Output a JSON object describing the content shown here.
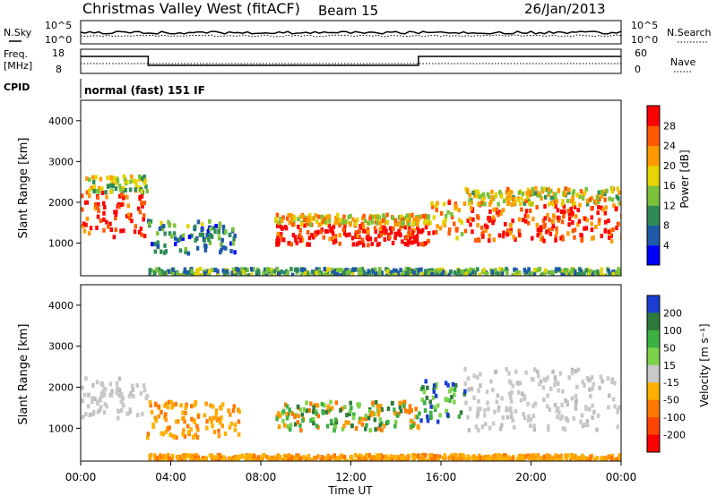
{
  "header": {
    "title": "Christmas Valley West (fitACF)",
    "beam": "Beam 15",
    "date": "26/Jan/2013"
  },
  "top_panels": {
    "nsky_label": "N.Sky",
    "nsearch_label": "N.Search",
    "noise_ticks_left": [
      "10^5",
      "10^0"
    ],
    "noise_ticks_right": [
      "10^5",
      "10^0"
    ],
    "freq_label_1": "Freq.",
    "freq_label_2": "[MHz]",
    "freq_ticks": [
      "18",
      "8"
    ],
    "nave_label": "Nave",
    "nave_ticks": [
      "60",
      "0"
    ],
    "cpid_label": "CPID",
    "cpid_text": "normal (fast) 151 IF"
  },
  "chart_data": [
    {
      "type": "heatmap",
      "panel": "power",
      "ylabel": "Slant Range [km]",
      "xlabel": "",
      "ylim": [
        200,
        4500
      ],
      "yticks": [
        "4000",
        "3000",
        "2000",
        "1000"
      ],
      "colorbar": {
        "label": "Power [dB]",
        "ticks": [
          "28",
          "24",
          "20",
          "16",
          "12",
          "8",
          "4"
        ],
        "colors": [
          "#0000ff",
          "#1f5aa8",
          "#2e8b57",
          "#7ac23a",
          "#e6d200",
          "#ff9900",
          "#ff5a00",
          "#ff0000"
        ]
      },
      "regions": [
        {
          "t0": 0.0,
          "t1": 2.9,
          "r0": 1200,
          "r1": 2300,
          "level": 0.9
        },
        {
          "t0": 0.2,
          "t1": 2.9,
          "r0": 2300,
          "r1": 2700,
          "level": 0.5
        },
        {
          "t0": 2.9,
          "t1": 6.8,
          "r0": 800,
          "r1": 1600,
          "level": 0.3
        },
        {
          "t0": 8.6,
          "t1": 15.5,
          "r0": 1000,
          "r1": 1500,
          "level": 0.95
        },
        {
          "t0": 8.6,
          "t1": 15.5,
          "r0": 1500,
          "r1": 1750,
          "level": 0.6
        },
        {
          "t0": 15.5,
          "t1": 17.0,
          "r0": 1100,
          "r1": 2100,
          "level": 0.7
        },
        {
          "t0": 17.0,
          "t1": 24.0,
          "r0": 1100,
          "r1": 2000,
          "level": 0.85
        },
        {
          "t0": 17.0,
          "t1": 24.0,
          "r0": 2000,
          "r1": 2400,
          "level": 0.55
        },
        {
          "t0": 3.0,
          "t1": 24.0,
          "r0": 250,
          "r1": 420,
          "level": 0.35
        }
      ]
    },
    {
      "type": "heatmap",
      "panel": "velocity",
      "ylabel": "Slant Range [km]",
      "xlabel": "Time UT",
      "ylim": [
        200,
        4500
      ],
      "xlim": [
        0,
        24
      ],
      "xticks": [
        "00:00",
        "04:00",
        "08:00",
        "12:00",
        "16:00",
        "20:00",
        "00:00"
      ],
      "yticks": [
        "4000",
        "3000",
        "2000",
        "1000"
      ],
      "colorbar": {
        "label": "Velocity [m s⁻¹]",
        "ticks": [
          "200",
          "100",
          "50",
          "15",
          "-15",
          "-50",
          "-100",
          "-200"
        ],
        "colors": [
          "#1a3fd0",
          "#2d7a3a",
          "#3cb043",
          "#7dd24a",
          "#c8c8c8",
          "#ffb000",
          "#ff7700",
          "#ff4400",
          "#ff0000"
        ]
      },
      "regions": [
        {
          "t0": 0.0,
          "t1": 2.9,
          "r0": 1300,
          "r1": 2300,
          "class": "ground"
        },
        {
          "t0": 2.9,
          "t1": 7.0,
          "r0": 800,
          "r1": 1700,
          "class": "negative"
        },
        {
          "t0": 8.6,
          "t1": 15.0,
          "r0": 1000,
          "r1": 1700,
          "class": "mixed"
        },
        {
          "t0": 15.0,
          "t1": 17.0,
          "r0": 1100,
          "r1": 2200,
          "class": "positive"
        },
        {
          "t0": 17.0,
          "t1": 24.0,
          "r0": 1000,
          "r1": 2500,
          "class": "ground"
        },
        {
          "t0": 3.0,
          "t1": 24.0,
          "r0": 250,
          "r1": 400,
          "class": "negative"
        }
      ]
    }
  ]
}
